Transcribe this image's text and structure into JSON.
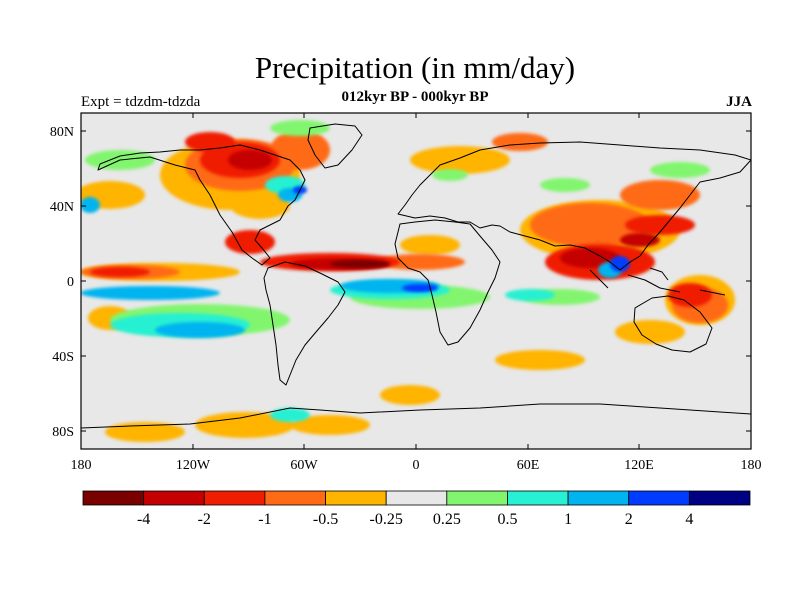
{
  "title": "Precipitation (in mm/day)",
  "subtitle": "012kyr BP - 000kyr BP",
  "experiment": "Expt = tdzdm-tdzda",
  "season": "JJA",
  "lat_labels": [
    "80N",
    "40N",
    "0",
    "40S",
    "80S"
  ],
  "lon_labels": [
    "180",
    "120W",
    "60W",
    "0",
    "60E",
    "120E",
    "180"
  ],
  "colorbar": {
    "labels": [
      "-4",
      "-2",
      "-1",
      "-0.5",
      "-0.25",
      "0.25",
      "0.5",
      "1",
      "2",
      "4"
    ],
    "colors": [
      "#7a0000",
      "#c40000",
      "#f01e00",
      "#ff6a14",
      "#ffb400",
      "#e8e8e8",
      "#82f56e",
      "#28f0d2",
      "#00b4f0",
      "#003cff",
      "#000082"
    ]
  },
  "colors": {
    "background": "#e8e8e8",
    "coast": "#000000"
  }
}
